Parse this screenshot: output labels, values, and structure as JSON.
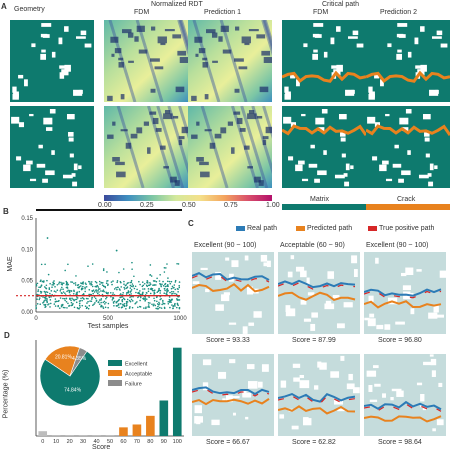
{
  "panel_a": {
    "label": "A",
    "col_geometry": "Geometry",
    "header_rdt": "Normalized RDT",
    "col_fdm_1": "FDM",
    "col_pred_1": "Prediction 1",
    "header_crit": "Critical path",
    "col_fdm_2": "FDM",
    "col_pred_2": "Prediction 2",
    "colorbar_ticks": [
      "0.00",
      "0.25",
      "0.50",
      "0.75",
      "1.00"
    ],
    "legend_matrix": "Matrix",
    "legend_crack": "Crack",
    "colors": {
      "matrix": "#0e7a6e",
      "crack": "#e8821e",
      "pore": "#ffffff"
    }
  },
  "panel_b": {
    "label": "B",
    "y_ticks": [
      "0.15",
      "0.10",
      "0.05",
      "0.00"
    ],
    "ylabel": "MAE",
    "xlabel": "Test samples",
    "x_ticks": [
      "0",
      "500",
      "1000"
    ],
    "colors": {
      "points": "#1a8f80",
      "mean": "#d62728"
    }
  },
  "panel_c": {
    "label": "C",
    "legend": [
      "Real path",
      "Predicted path",
      "True positive path"
    ],
    "tiles": [
      {
        "title": "Excellent (90 ~ 100)",
        "score": "Score = 93.33"
      },
      {
        "title": "Acceptable (60 ~ 90)",
        "score": "Score = 87.99"
      },
      {
        "title": "Excellent (90 ~ 100)",
        "score": "Score = 96.80"
      },
      {
        "title": "",
        "score": "Score = 66.67"
      },
      {
        "title": "",
        "score": "Score = 62.82"
      },
      {
        "title": "",
        "score": "Score = 98.64"
      }
    ],
    "colors": {
      "matrix": "#c5dcdc",
      "real": "#2c7bb6",
      "pred": "#e8821e",
      "tp": "#d62728"
    }
  },
  "panel_d": {
    "label": "D",
    "ylabel": "Percentage (%)",
    "xlabel": "Score",
    "legend": [
      "Excellent",
      "Acceptable",
      "Failure"
    ],
    "pie_labels": [
      "74.84%",
      "20.81%",
      "4.35%"
    ]
  },
  "chart_data": [
    {
      "type": "scatter",
      "panel": "B",
      "xlabel": "Test samples",
      "ylabel": "MAE",
      "xlim": [
        0,
        1000
      ],
      "ylim": [
        0,
        0.15
      ],
      "mean_line": 0.026
    },
    {
      "type": "bar",
      "panel": "D",
      "xlabel": "Score",
      "ylabel": "Percentage (%)",
      "categories": [
        "0",
        "10",
        "20",
        "30",
        "40",
        "50",
        "60",
        "70",
        "80",
        "90",
        "100"
      ],
      "values": [
        2.5,
        0.5,
        0.5,
        0.5,
        0.5,
        0.5,
        4.5,
        6.0,
        10.5,
        18.5,
        46.0
      ],
      "bar_colors": [
        "#bdbdbd",
        "#bdbdbd",
        "#bdbdbd",
        "#bdbdbd",
        "#bdbdbd",
        "#bdbdbd",
        "#e8821e",
        "#e8821e",
        "#e8821e",
        "#0e7a6e",
        "#0e7a6e"
      ],
      "ylim": [
        0,
        50
      ]
    },
    {
      "type": "pie",
      "panel": "D-inset",
      "labels": [
        "Excellent",
        "Acceptable",
        "Failure"
      ],
      "values": [
        74.84,
        20.81,
        4.35
      ],
      "colors": [
        "#0e7a6e",
        "#e8821e",
        "#8c8c8c"
      ]
    }
  ]
}
